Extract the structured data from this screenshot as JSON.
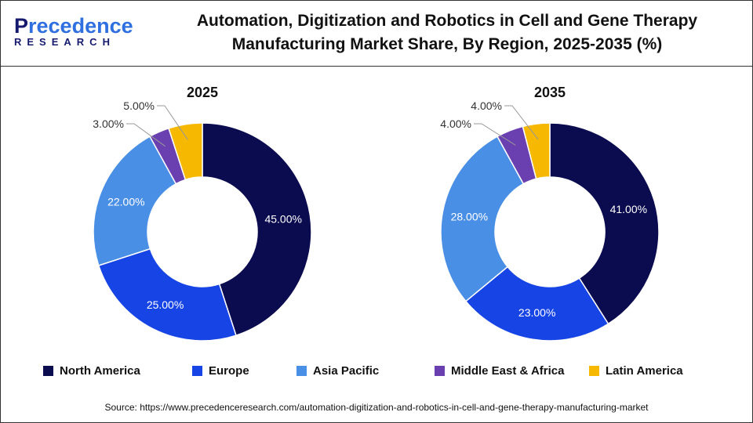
{
  "logo": {
    "text": "Precedence",
    "text2": "RESEARCH"
  },
  "title": "Automation, Digitization and Robotics in Cell and Gene Therapy Manufacturing Market Share, By Region, 2025-2035 (%)",
  "source": "Source: https://www.precedenceresearch.com/automation-digitization-and-robotics-in-cell-and-gene-therapy-manufacturing-market",
  "chart_data": [
    {
      "type": "pie",
      "donut": true,
      "title": "2025",
      "categories": [
        "North America",
        "Europe",
        "Asia Pacific",
        "Middle East & Africa",
        "Latin America"
      ],
      "values": [
        45,
        25,
        22,
        3,
        5
      ],
      "labels": [
        "45.00%",
        "25.00%",
        "22.00%",
        "3.00%",
        "5.00%"
      ]
    },
    {
      "type": "pie",
      "donut": true,
      "title": "2035",
      "categories": [
        "North America",
        "Europe",
        "Asia Pacific",
        "Middle East & Africa",
        "Latin America"
      ],
      "values": [
        41,
        23,
        28,
        4,
        4
      ],
      "labels": [
        "41.00%",
        "23.00%",
        "28.00%",
        "4.00%",
        "4.00%"
      ]
    }
  ],
  "legend": {
    "placement": "bottom",
    "items": [
      "North America",
      "Europe",
      "Asia Pacific",
      "Middle East & Africa",
      "Latin America"
    ]
  },
  "colors": [
    "#0b0b4f",
    "#1744e4",
    "#4a8fe6",
    "#6a3faf",
    "#f6b800"
  ]
}
